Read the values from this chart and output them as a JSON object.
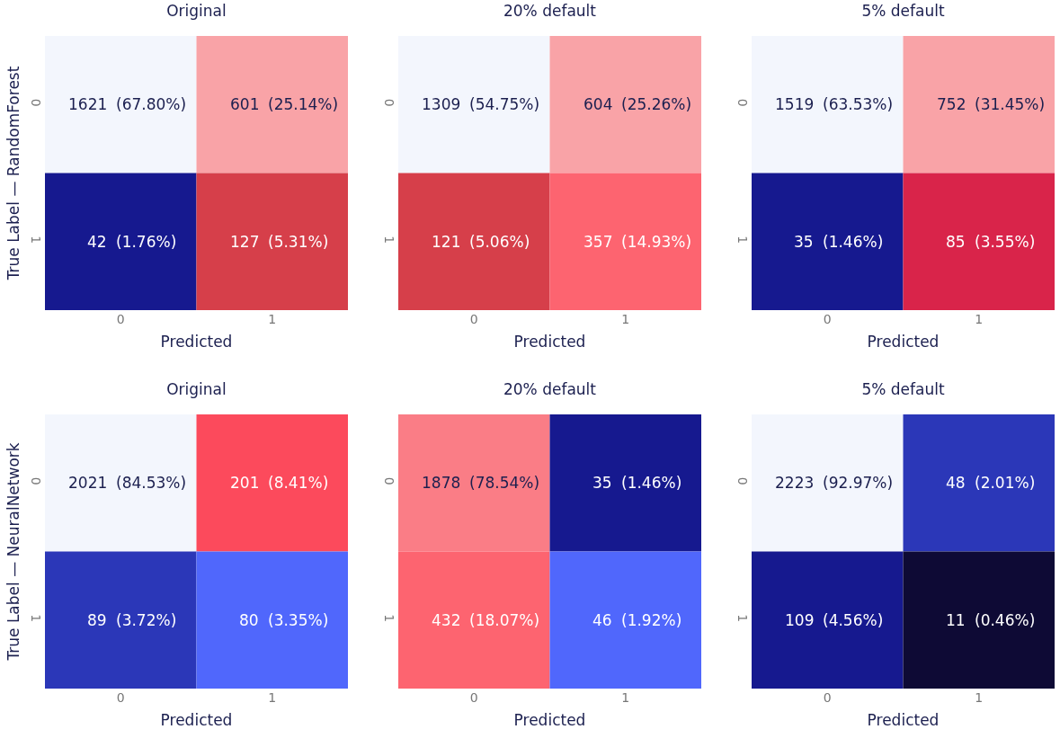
{
  "chart_data": [
    {
      "type": "heatmap",
      "title": "Original",
      "xlabel": "Predicted",
      "ylabel": "True Label — RandomForest",
      "categories": [
        "0",
        "1"
      ],
      "y_categories": [
        "0",
        "1"
      ],
      "cells": [
        [
          1621,
          601
        ],
        [
          42,
          127
        ]
      ],
      "data_labels": true,
      "colors": [
        [
          "#f3f6fd",
          "#f9a3a7"
        ],
        [
          "#16198f",
          "#d63f4a"
        ]
      ],
      "annotations": [
        "(67.80%)",
        "(25.14%)",
        "(1.76%)",
        "(5.31%)"
      ]
    },
    {
      "type": "heatmap",
      "title": "20% default",
      "xlabel": "Predicted",
      "categories": [
        "0",
        "1"
      ],
      "y_categories": [
        "0",
        "1"
      ],
      "cells": [
        [
          1309,
          604
        ],
        [
          121,
          357
        ]
      ],
      "data_labels": true,
      "colors": [
        [
          "#f3f6fd",
          "#f9a3a7"
        ],
        [
          "#d63f4a",
          "#fd6470"
        ]
      ],
      "annotations": [
        "(54.75%)",
        "(25.26%)",
        "(5.06%)",
        "(14.93%)"
      ]
    },
    {
      "type": "heatmap",
      "title": "5% default",
      "xlabel": "Predicted",
      "categories": [
        "0",
        "1"
      ],
      "y_categories": [
        "0",
        "1"
      ],
      "cells": [
        [
          1519,
          752
        ],
        [
          35,
          85
        ]
      ],
      "data_labels": true,
      "colors": [
        [
          "#f3f6fd",
          "#f9a3a7"
        ],
        [
          "#16198f",
          "#d9244a"
        ]
      ],
      "annotations": [
        "(63.53%)",
        "(31.45%)",
        "(1.46%)",
        "(3.55%)"
      ]
    },
    {
      "type": "heatmap",
      "title": "Original",
      "xlabel": "Predicted",
      "ylabel": "True Label — NeuralNetwork",
      "categories": [
        "0",
        "1"
      ],
      "y_categories": [
        "0",
        "1"
      ],
      "cells": [
        [
          2021,
          201
        ],
        [
          89,
          80
        ]
      ],
      "data_labels": true,
      "colors": [
        [
          "#f3f6fd",
          "#fc4a5c"
        ],
        [
          "#2b37b8",
          "#5067fc"
        ]
      ],
      "annotations": [
        "(84.53%)",
        "(8.41%)",
        "(3.72%)",
        "(3.35%)"
      ]
    },
    {
      "type": "heatmap",
      "title": "20% default",
      "xlabel": "Predicted",
      "categories": [
        "0",
        "1"
      ],
      "y_categories": [
        "0",
        "1"
      ],
      "cells": [
        [
          1878,
          35
        ],
        [
          432,
          46
        ]
      ],
      "data_labels": true,
      "colors": [
        [
          "#fa7d86",
          "#16198f"
        ],
        [
          "#fd6470",
          "#5067fc"
        ]
      ],
      "annotations": [
        "(78.54%)",
        "(1.46%)",
        "(18.07%)",
        "(1.92%)"
      ]
    },
    {
      "type": "heatmap",
      "title": "5% default",
      "xlabel": "Predicted",
      "categories": [
        "0",
        "1"
      ],
      "y_categories": [
        "0",
        "1"
      ],
      "cells": [
        [
          2223,
          48
        ],
        [
          109,
          11
        ]
      ],
      "data_labels": true,
      "colors": [
        [
          "#f3f6fd",
          "#2b37b8"
        ],
        [
          "#16198f",
          "#0e0a35"
        ]
      ],
      "annotations": [
        "(92.97%)",
        "(2.01%)",
        "(4.56%)",
        "(0.46%)"
      ]
    }
  ]
}
